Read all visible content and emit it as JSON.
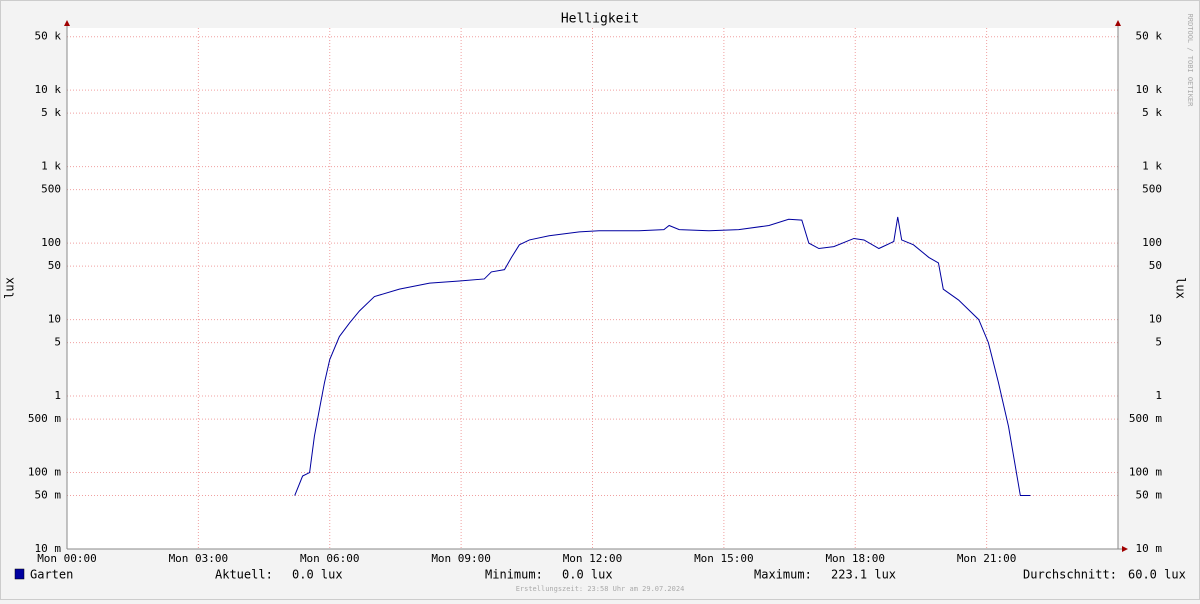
{
  "chart_data": {
    "type": "line",
    "title": "Helligkeit",
    "y_label": "lux",
    "watermark": "RRDTOOL / TOBI OETIKER",
    "footer": "Erstellungszeit: 23:58 Uhr am 29.07.2024",
    "log_y": true,
    "grid": true,
    "xlim": [
      0,
      24
    ],
    "xticks": [
      {
        "value": 0,
        "label": "Mon 00:00"
      },
      {
        "value": 3,
        "label": "Mon 03:00"
      },
      {
        "value": 6,
        "label": "Mon 06:00"
      },
      {
        "value": 9,
        "label": "Mon 09:00"
      },
      {
        "value": 12,
        "label": "Mon 12:00"
      },
      {
        "value": 15,
        "label": "Mon 15:00"
      },
      {
        "value": 18,
        "label": "Mon 18:00"
      },
      {
        "value": 21,
        "label": "Mon 21:00"
      }
    ],
    "ylim": [
      0.01,
      65000
    ],
    "yticks": [
      {
        "value": 0.01,
        "label": "10 m"
      },
      {
        "value": 0.05,
        "label": "50 m"
      },
      {
        "value": 0.1,
        "label": "100 m"
      },
      {
        "value": 0.5,
        "label": "500 m"
      },
      1,
      5,
      10,
      50,
      100,
      500,
      {
        "value": 1000,
        "label": "1 k"
      },
      {
        "value": 5000,
        "label": "5 k"
      },
      {
        "value": 10000,
        "label": "10 k"
      },
      {
        "value": 50000,
        "label": "50 k"
      }
    ],
    "x": [
      5.2,
      5.38,
      5.54,
      5.65,
      5.77,
      5.88,
      6.0,
      6.22,
      6.45,
      6.68,
      7.02,
      7.59,
      8.28,
      8.96,
      9.53,
      9.69,
      9.99,
      10.15,
      10.33,
      10.56,
      11.01,
      11.7,
      12.15,
      13.06,
      13.63,
      13.75,
      13.98,
      14.66,
      15.34,
      16.03,
      16.48,
      16.78,
      16.94,
      17.17,
      17.51,
      17.97,
      18.2,
      18.54,
      18.88,
      18.97,
      19.06,
      19.33,
      19.68,
      19.9,
      20.01,
      20.36,
      20.82,
      21.04,
      21.27,
      21.5,
      21.68,
      21.77,
      22.0
    ],
    "series": [
      {
        "name": "Garten",
        "color": "#0000a0",
        "values": [
          0.05,
          0.09,
          0.1,
          0.3,
          0.7,
          1.5,
          3,
          6,
          9,
          13,
          20,
          25,
          30,
          32,
          34,
          42,
          45,
          65,
          95,
          110,
          125,
          140,
          145,
          145,
          150,
          170,
          150,
          145,
          150,
          170,
          205,
          200,
          100,
          85,
          90,
          115,
          110,
          85,
          105,
          220,
          110,
          95,
          65,
          55,
          25,
          18,
          10,
          5,
          1.5,
          0.4,
          0.1,
          0.05,
          0.05
        ]
      }
    ],
    "stats": [
      {
        "label": "Aktuell:",
        "value": "0.0 lux"
      },
      {
        "label": "Minimum:",
        "value": "0.0 lux"
      },
      {
        "label": "Maximum:",
        "value": "223.1 lux"
      },
      {
        "label": "Durchschnitt:",
        "value": "60.0 lux"
      }
    ]
  }
}
